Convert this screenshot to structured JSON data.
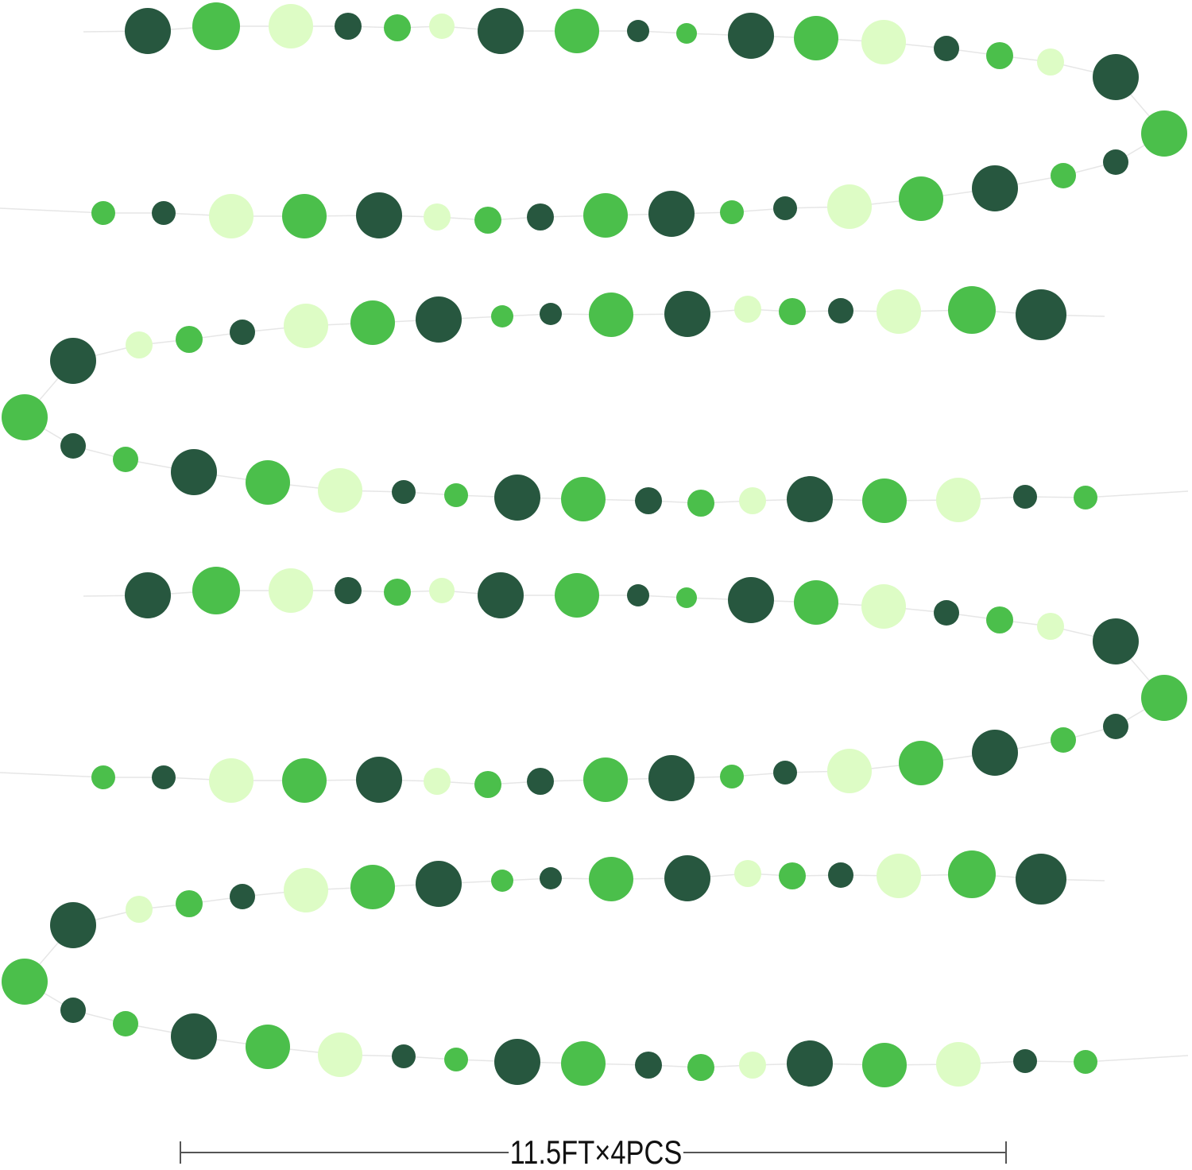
{
  "product_image": {
    "description_label": "11.5FT×4PCS",
    "colors": {
      "dark_green": "#27573f",
      "green": "#4bbf4b",
      "light_green": "#ddfcc5",
      "string": "#e6e6e6"
    },
    "garland_count_shown": 2
  }
}
